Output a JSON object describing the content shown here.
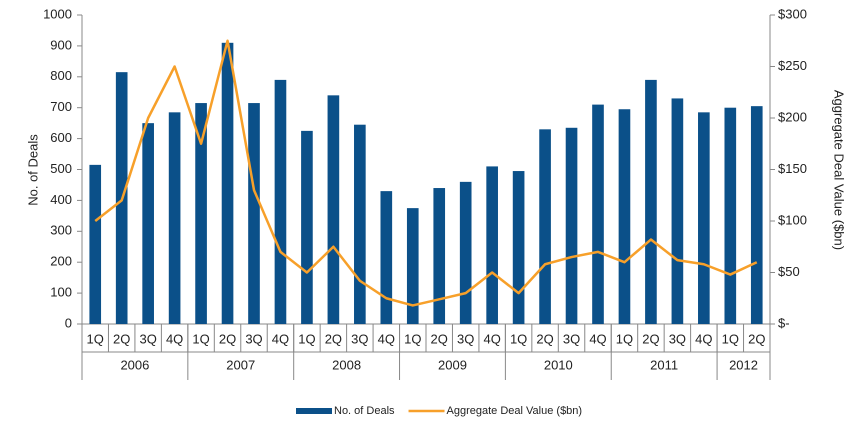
{
  "chart_data": {
    "type": "bar_line",
    "categories": [
      "1Q",
      "2Q",
      "3Q",
      "4Q",
      "1Q",
      "2Q",
      "3Q",
      "4Q",
      "1Q",
      "2Q",
      "3Q",
      "4Q",
      "1Q",
      "2Q",
      "3Q",
      "4Q",
      "1Q",
      "2Q",
      "3Q",
      "4Q",
      "1Q",
      "2Q",
      "3Q",
      "4Q",
      "1Q",
      "2Q"
    ],
    "groups": [
      {
        "name": "2006",
        "size": 4
      },
      {
        "name": "2007",
        "size": 4
      },
      {
        "name": "2008",
        "size": 4
      },
      {
        "name": "2009",
        "size": 4
      },
      {
        "name": "2010",
        "size": 4
      },
      {
        "name": "2011",
        "size": 4
      },
      {
        "name": "2012",
        "size": 2
      }
    ],
    "y_label": "No. of Deals",
    "y2_label": "Aggregate Deal Value ($bn)",
    "ylim": [
      0,
      1000
    ],
    "yticks": [
      0,
      100,
      200,
      300,
      400,
      500,
      600,
      700,
      800,
      900,
      1000
    ],
    "y2lim": [
      0,
      300
    ],
    "y2ticks": [
      {
        "value": 0,
        "label": "$-"
      },
      {
        "value": 50,
        "label": "$50"
      },
      {
        "value": 100,
        "label": "$100"
      },
      {
        "value": 150,
        "label": "$150"
      },
      {
        "value": 200,
        "label": "$200"
      },
      {
        "value": 250,
        "label": "$250"
      },
      {
        "value": 300,
        "label": "$300"
      }
    ],
    "series": [
      {
        "name": "No. of Deals",
        "type": "bar",
        "color": "#0b5089",
        "values": [
          515,
          815,
          650,
          685,
          715,
          910,
          715,
          790,
          625,
          740,
          645,
          430,
          375,
          440,
          460,
          510,
          495,
          630,
          635,
          710,
          695,
          790,
          730,
          685,
          700,
          705
        ]
      },
      {
        "name": "Aggregate Deal Value ($bn)",
        "type": "line",
        "axis": "y2",
        "color": "#f7a02a",
        "values": [
          100,
          120,
          200,
          250,
          175,
          275,
          130,
          70,
          50,
          75,
          42,
          25,
          18,
          24,
          30,
          50,
          30,
          58,
          65,
          70,
          60,
          82,
          62,
          58,
          48,
          60
        ]
      }
    ],
    "legend": "bottom"
  }
}
